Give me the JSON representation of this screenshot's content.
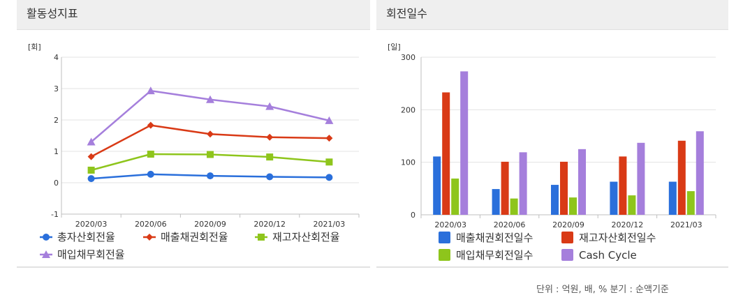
{
  "panels": {
    "left": {
      "title": "활동성지표"
    },
    "right": {
      "title": "회전일수"
    }
  },
  "footer": {
    "note": "단위 : 억원, 배, % 분기 : 순액기준"
  },
  "chart_data": [
    {
      "type": "line",
      "title": "활동성지표",
      "ylabel": "[회]",
      "ylim": [
        -1,
        4
      ],
      "yticks": [
        -1,
        0,
        1,
        2,
        3,
        4
      ],
      "categories": [
        "2020/03",
        "2020/06",
        "2020/09",
        "2020/12",
        "2021/03"
      ],
      "grid": true,
      "legend": "bottom",
      "series": [
        {
          "name": "총자산회전율",
          "color": "#2a6fdb",
          "marker": "circle",
          "values": [
            0.13,
            0.27,
            0.22,
            0.19,
            0.17
          ]
        },
        {
          "name": "매출채권회전율",
          "color": "#d93a16",
          "marker": "diamond",
          "values": [
            0.83,
            1.83,
            1.55,
            1.45,
            1.42
          ]
        },
        {
          "name": "재고자산회전율",
          "color": "#8ec51c",
          "marker": "square",
          "values": [
            0.4,
            0.91,
            0.9,
            0.82,
            0.66
          ]
        },
        {
          "name": "매입채무회전율",
          "color": "#a57fdc",
          "marker": "triangle",
          "values": [
            1.3,
            2.93,
            2.65,
            2.43,
            1.98
          ]
        }
      ]
    },
    {
      "type": "bar",
      "title": "회전일수",
      "ylabel": "[일]",
      "ylim": [
        0,
        300
      ],
      "yticks": [
        0,
        100,
        200,
        300
      ],
      "categories": [
        "2020/03",
        "2020/06",
        "2020/09",
        "2020/12",
        "2021/03"
      ],
      "grid": true,
      "legend": "bottom",
      "series": [
        {
          "name": "매출채권회전일수",
          "color": "#2a6fdb",
          "values": [
            111,
            49,
            57,
            63,
            63
          ]
        },
        {
          "name": "재고자산회전일수",
          "color": "#d93a16",
          "values": [
            233,
            101,
            101,
            111,
            141
          ]
        },
        {
          "name": "매입채무회전일수",
          "color": "#8ec51c",
          "values": [
            69,
            31,
            33,
            37,
            45
          ]
        },
        {
          "name": "Cash Cycle",
          "color": "#a57fdc",
          "values": [
            273,
            119,
            125,
            137,
            159
          ]
        }
      ]
    }
  ]
}
